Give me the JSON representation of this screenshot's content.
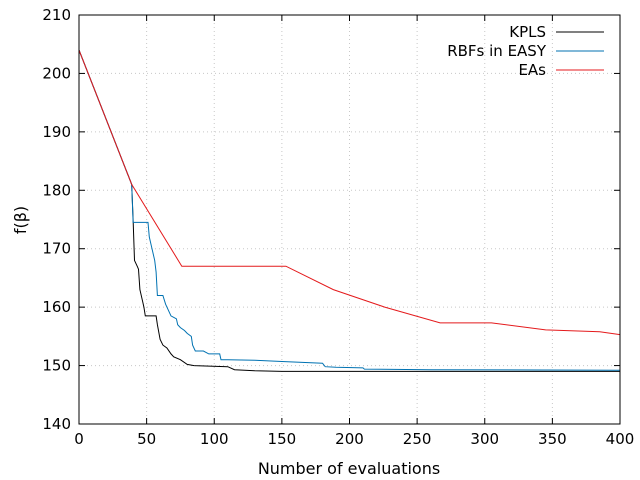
{
  "chart_data": {
    "type": "line",
    "title": "",
    "xlabel": "Number of evaluations",
    "ylabel": "f(β)",
    "xlim": [
      0,
      400
    ],
    "ylim": [
      140,
      210
    ],
    "xticks": [
      0,
      50,
      100,
      150,
      200,
      250,
      300,
      350,
      400
    ],
    "yticks": [
      140,
      150,
      160,
      170,
      180,
      190,
      200,
      210
    ],
    "grid": true,
    "legend_position": "top-right",
    "series": [
      {
        "name": "KPLS",
        "color": "#000000",
        "points": [
          [
            0,
            204
          ],
          [
            39,
            181
          ],
          [
            40,
            175
          ],
          [
            41,
            168
          ],
          [
            43,
            167
          ],
          [
            44,
            166.5
          ],
          [
            45,
            163
          ],
          [
            47,
            161
          ],
          [
            48,
            160
          ],
          [
            49,
            158.5
          ],
          [
            57,
            158.5
          ],
          [
            58,
            157
          ],
          [
            60,
            154.5
          ],
          [
            62,
            153.5
          ],
          [
            65,
            153
          ],
          [
            68,
            152
          ],
          [
            70,
            151.5
          ],
          [
            75,
            151
          ],
          [
            80,
            150.2
          ],
          [
            85,
            150
          ],
          [
            110,
            149.8
          ],
          [
            115,
            149.3
          ],
          [
            130,
            149.1
          ],
          [
            150,
            149
          ],
          [
            200,
            149
          ],
          [
            300,
            149
          ],
          [
            400,
            149
          ]
        ]
      },
      {
        "name": "RBFs in EASY",
        "color": "#0072b2",
        "points": [
          [
            0,
            204
          ],
          [
            39,
            181
          ],
          [
            40,
            174.5
          ],
          [
            51,
            174.5
          ],
          [
            52,
            172
          ],
          [
            54,
            170
          ],
          [
            56,
            168
          ],
          [
            57,
            166
          ],
          [
            58,
            162
          ],
          [
            62,
            162
          ],
          [
            64,
            160.5
          ],
          [
            66,
            159.5
          ],
          [
            68,
            158.5
          ],
          [
            72,
            158
          ],
          [
            73,
            157
          ],
          [
            75,
            156.5
          ],
          [
            78,
            156
          ],
          [
            80,
            155.5
          ],
          [
            83,
            155
          ],
          [
            84,
            153.5
          ],
          [
            86,
            152.5
          ],
          [
            92,
            152.5
          ],
          [
            96,
            152
          ],
          [
            104,
            152
          ],
          [
            105,
            151
          ],
          [
            110,
            151
          ],
          [
            130,
            150.9
          ],
          [
            150,
            150.7
          ],
          [
            180,
            150.4
          ],
          [
            182,
            149.8
          ],
          [
            190,
            149.7
          ],
          [
            210,
            149.6
          ],
          [
            211,
            149.4
          ],
          [
            260,
            149.3
          ],
          [
            400,
            149.2
          ]
        ]
      },
      {
        "name": "EAs",
        "color": "#e41a1c",
        "points": [
          [
            0,
            204
          ],
          [
            39,
            181
          ],
          [
            76,
            167
          ],
          [
            153,
            167
          ],
          [
            188,
            163
          ],
          [
            226,
            160
          ],
          [
            267,
            157.3
          ],
          [
            305,
            157.3
          ],
          [
            345,
            156.1
          ],
          [
            385,
            155.8
          ],
          [
            400,
            155.3
          ]
        ]
      }
    ]
  }
}
